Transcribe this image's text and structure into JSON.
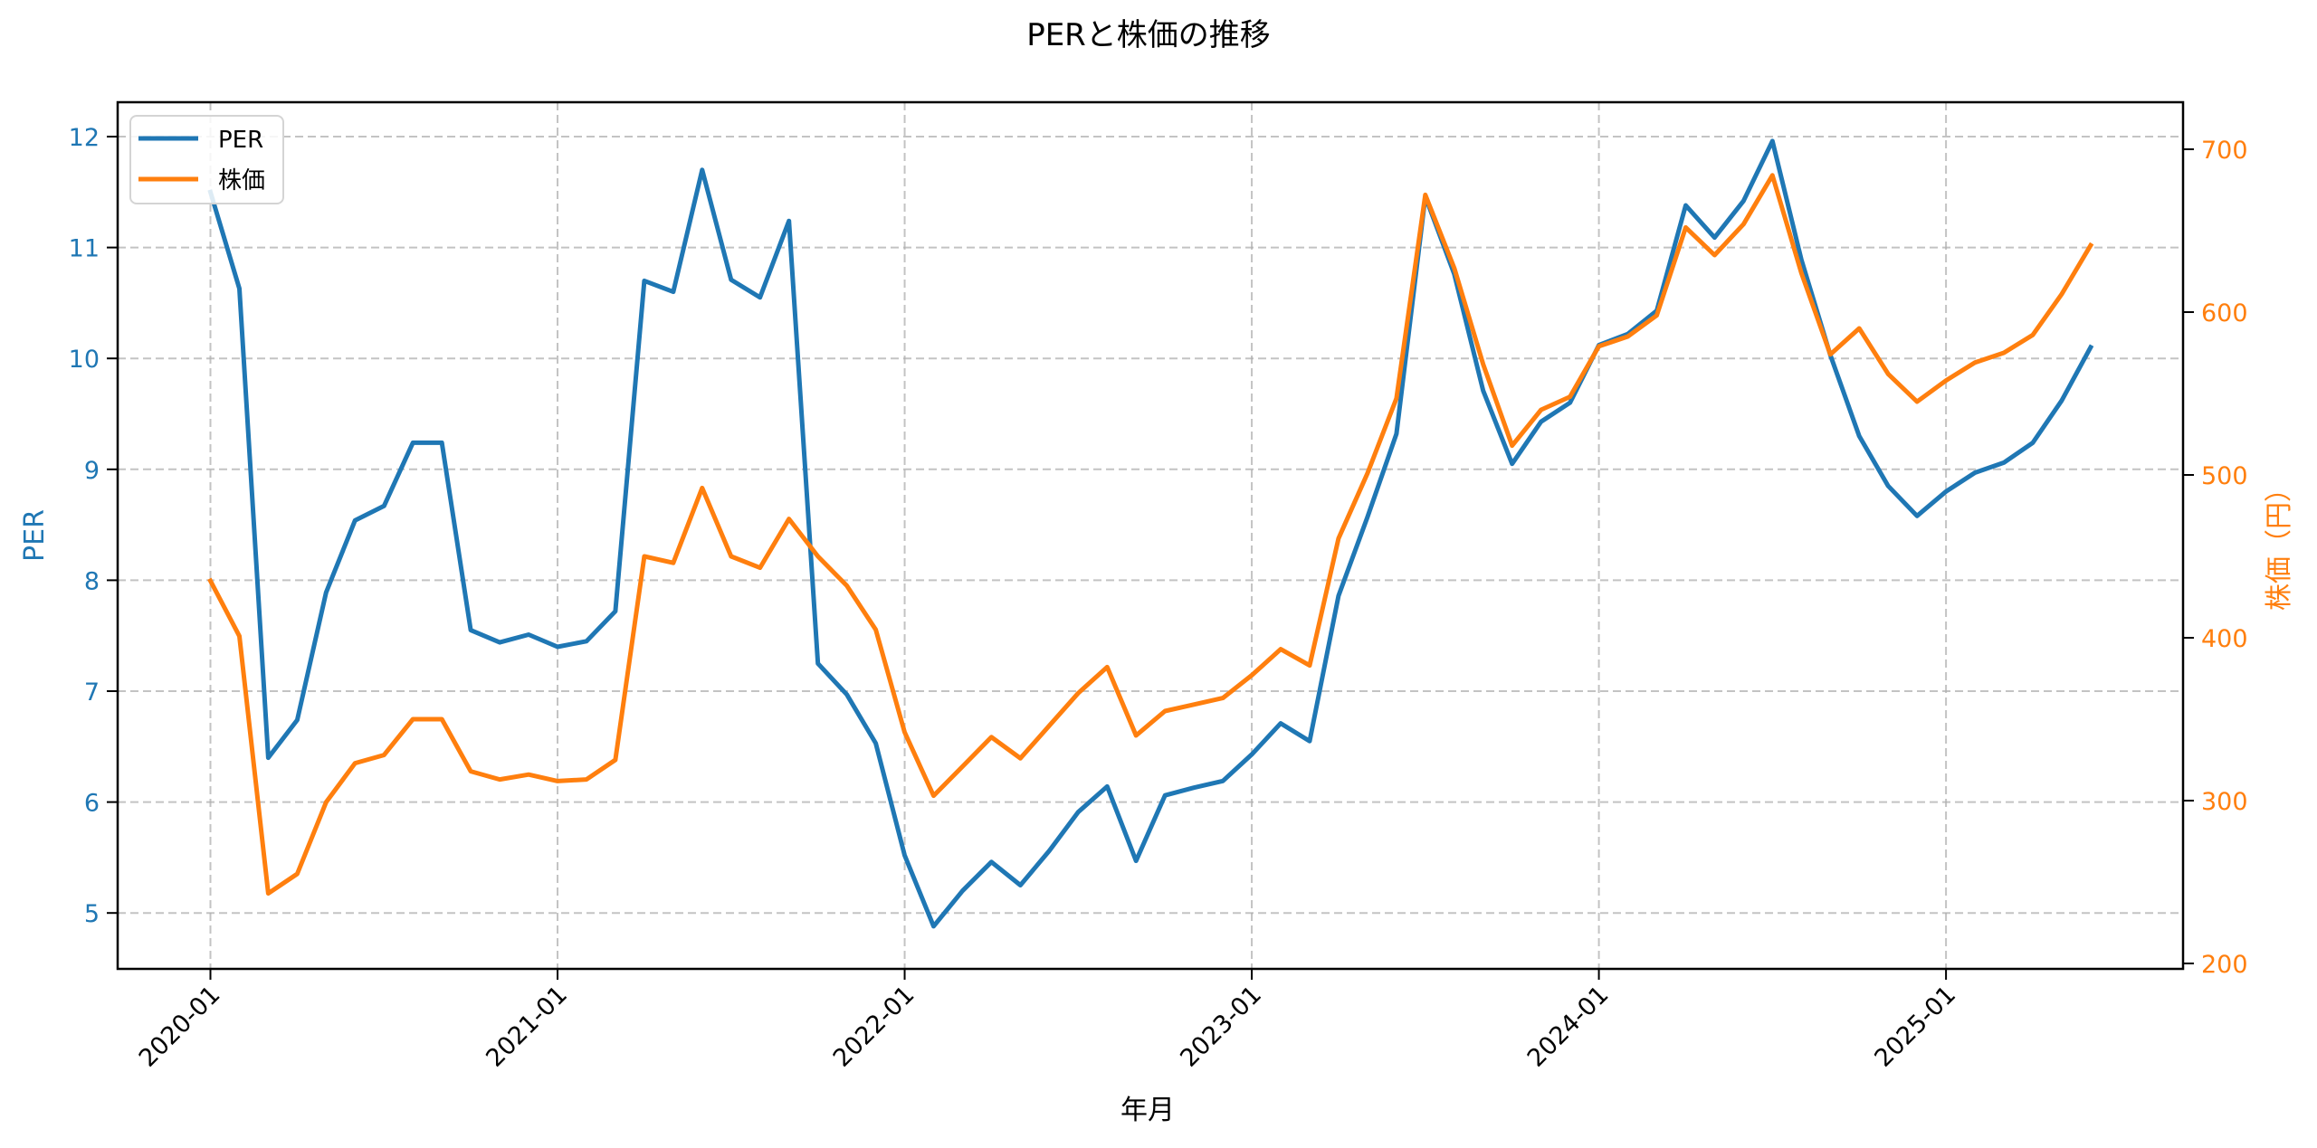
{
  "chart_data": {
    "type": "line",
    "title": "PERと株価の推移",
    "xlabel": "年月",
    "ylabel": "PER",
    "ylabel_right": "株価（円）",
    "grid": true,
    "legend_position": "upper left",
    "x_tick_labels": [
      "2020-01",
      "2021-01",
      "2022-01",
      "2023-01",
      "2024-01",
      "2025-01"
    ],
    "y_ticks_left": [
      5,
      6,
      7,
      8,
      9,
      10,
      11,
      12
    ],
    "y_ticks_right": [
      200,
      300,
      400,
      500,
      600,
      700
    ],
    "ylim_left": [
      4.5,
      12.3
    ],
    "ylim_right": [
      195,
      730
    ],
    "x": [
      "2020-01",
      "2020-02",
      "2020-03",
      "2020-04",
      "2020-05",
      "2020-06",
      "2020-07",
      "2020-08",
      "2020-09",
      "2020-10",
      "2020-11",
      "2020-12",
      "2021-01",
      "2021-02",
      "2021-03",
      "2021-04",
      "2021-05",
      "2021-06",
      "2021-07",
      "2021-08",
      "2021-09",
      "2021-10",
      "2021-11",
      "2021-12",
      "2022-01",
      "2022-02",
      "2022-03",
      "2022-04",
      "2022-05",
      "2022-06",
      "2022-07",
      "2022-08",
      "2022-09",
      "2022-10",
      "2022-11",
      "2022-12",
      "2023-01",
      "2023-02",
      "2023-03",
      "2023-04",
      "2023-05",
      "2023-06",
      "2023-07",
      "2023-08",
      "2023-09",
      "2023-10",
      "2023-11",
      "2023-12",
      "2024-01",
      "2024-02",
      "2024-03",
      "2024-04",
      "2024-05",
      "2024-06",
      "2024-07",
      "2024-08",
      "2024-09",
      "2024-10",
      "2024-11",
      "2024-12",
      "2025-01",
      "2025-02",
      "2025-03",
      "2025-04",
      "2025-05",
      "2025-06"
    ],
    "series": [
      {
        "name": "PER",
        "axis": "left",
        "color": "#1f77b4",
        "values": [
          11.5,
          10.63,
          6.4,
          6.74,
          7.89,
          8.54,
          8.67,
          9.24,
          9.24,
          7.55,
          7.44,
          7.51,
          7.4,
          7.45,
          7.72,
          10.7,
          10.6,
          11.7,
          10.71,
          10.55,
          11.24,
          7.25,
          6.97,
          6.53,
          5.52,
          4.88,
          5.2,
          5.46,
          5.25,
          5.56,
          5.91,
          6.14,
          5.47,
          6.06,
          6.13,
          6.19,
          6.43,
          6.71,
          6.55,
          7.86,
          8.57,
          9.32,
          11.46,
          10.76,
          9.71,
          9.05,
          9.43,
          9.6,
          10.12,
          10.22,
          10.43,
          11.38,
          11.09,
          11.42,
          11.96,
          10.89,
          10.03,
          9.3,
          8.85,
          8.58,
          8.8,
          8.97,
          9.06,
          9.24,
          9.62,
          10.1
        ]
      },
      {
        "name": "株価",
        "axis": "right",
        "color": "#ff7f0e",
        "values": [
          435,
          401,
          243,
          255,
          299,
          323,
          328,
          350,
          350,
          318,
          313,
          316,
          312,
          313,
          325,
          450,
          446,
          492,
          450,
          443,
          473,
          450,
          432,
          405,
          342,
          303,
          321,
          339,
          326,
          346,
          366,
          382,
          340,
          355,
          359,
          363,
          377,
          393,
          383,
          461,
          501,
          547,
          672,
          627,
          568,
          518,
          540,
          548,
          579,
          585,
          598,
          652,
          635,
          654,
          684,
          624,
          574,
          590,
          562,
          545,
          558,
          569,
          575,
          586,
          611,
          641
        ]
      }
    ]
  },
  "colors": {
    "left_axis": "#1f77b4",
    "right_axis": "#ff7f0e",
    "grid": "#b0b0b0",
    "frame": "#000000"
  }
}
